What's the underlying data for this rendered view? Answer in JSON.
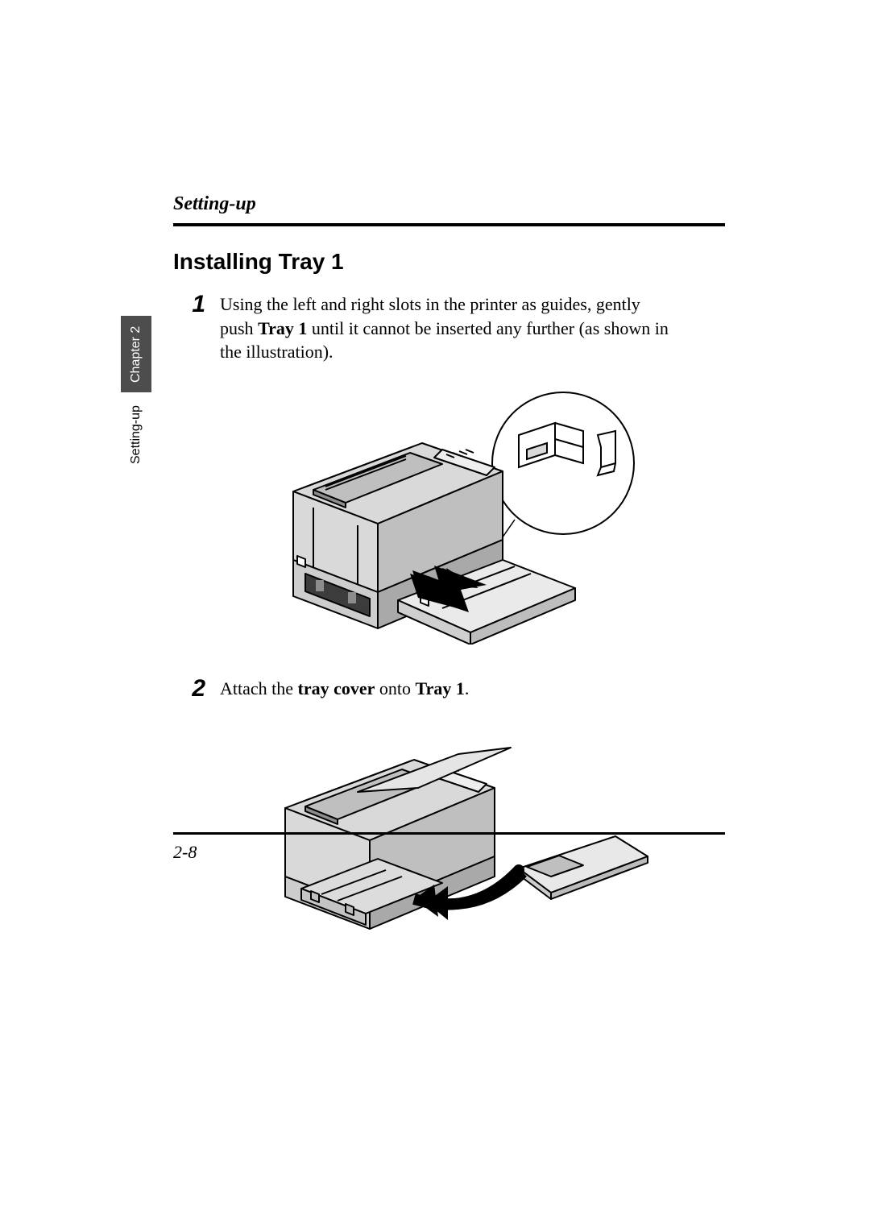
{
  "header": {
    "running_head": "Setting-up"
  },
  "section": {
    "title": "Installing Tray 1"
  },
  "steps": [
    {
      "num": "1",
      "segments": [
        {
          "text": "Using the left and right slots in the printer as guides, gently push ",
          "bold": false
        },
        {
          "text": "Tray 1",
          "bold": true
        },
        {
          "text": " until it cannot be inserted any further (as shown in the illustration).",
          "bold": false
        }
      ]
    },
    {
      "num": "2",
      "segments": [
        {
          "text": "Attach the ",
          "bold": false
        },
        {
          "text": "tray cover",
          "bold": true
        },
        {
          "text": " onto ",
          "bold": false
        },
        {
          "text": "Tray 1",
          "bold": true
        },
        {
          "text": ".",
          "bold": false
        }
      ]
    }
  ],
  "side_tab": {
    "dark": "Chapter 2",
    "light": "Setting-up"
  },
  "footer": {
    "page_number": "2-8"
  },
  "colors": {
    "text": "#000000",
    "background": "#ffffff",
    "tab_bg": "#4d4d4d",
    "tab_fg": "#ffffff",
    "printer_body": "#d9d9d9",
    "printer_shadow": "#737373",
    "line": "#000000"
  }
}
